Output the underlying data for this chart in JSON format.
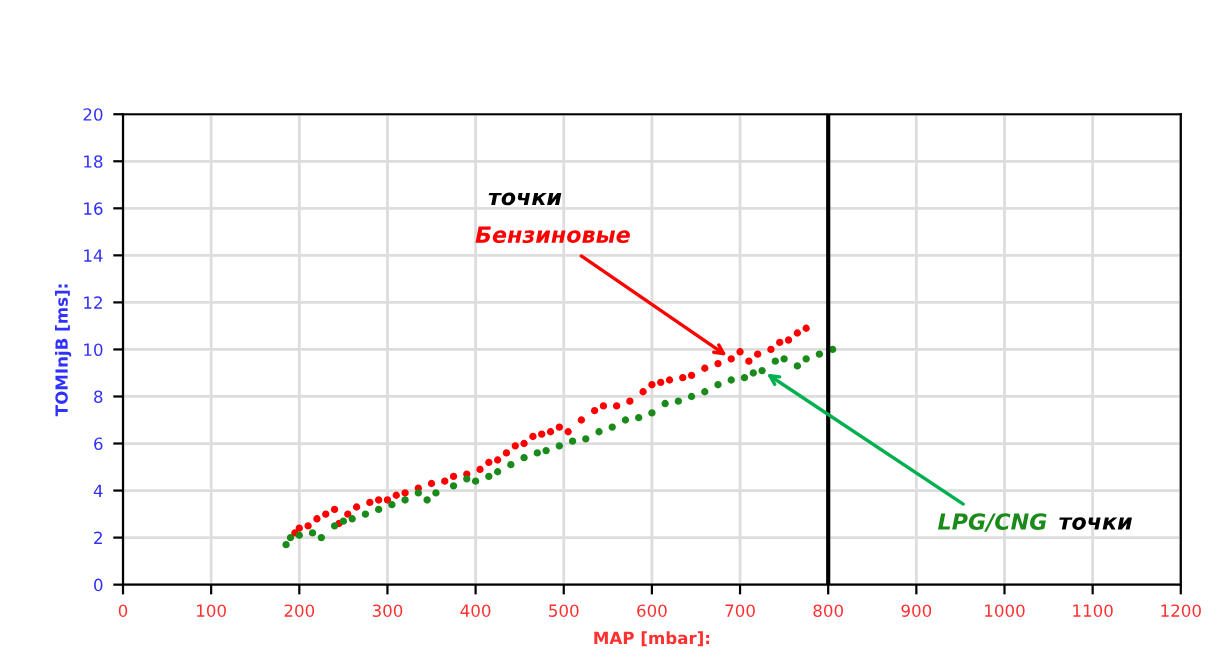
{
  "chart_data": {
    "type": "scatter",
    "xlabel": "MAP [mbar]:",
    "ylabel": "TOMInjB [ms]:",
    "xlim": [
      0,
      1200
    ],
    "xticks": [
      0,
      100,
      200,
      300,
      400,
      500,
      600,
      700,
      800,
      900,
      1000,
      1100,
      1200
    ],
    "ylim": [
      0,
      20
    ],
    "yticks": [
      0,
      2,
      4,
      6,
      8,
      10,
      12,
      14,
      16,
      18,
      20
    ],
    "grid": true,
    "marker": "circle",
    "ref_lines": [
      {
        "axis": "x",
        "value": 800,
        "color": "#000000"
      }
    ],
    "annotations": [
      {
        "text": "Бензиновые",
        "x": 690,
        "y": 9.6
      },
      {
        "text": "LPG/CNG",
        "x": 725,
        "y": 9.1
      },
      "точки",
      "точки"
    ],
    "series": [
      {
        "color": "#ff0000",
        "x": [
          195,
          200,
          210,
          220,
          230,
          240,
          245,
          255,
          265,
          280,
          290,
          300,
          310,
          320,
          335,
          350,
          365,
          375,
          390,
          405,
          415,
          425,
          435,
          445,
          455,
          465,
          475,
          485,
          495,
          505,
          520,
          535,
          545,
          560,
          575,
          590,
          600,
          610,
          620,
          635,
          645,
          660,
          675,
          690,
          700,
          710,
          720,
          735,
          745,
          755,
          765,
          775
        ],
        "values": [
          2.2,
          2.4,
          2.5,
          2.8,
          3.0,
          3.2,
          2.6,
          3.0,
          3.3,
          3.5,
          3.6,
          3.6,
          3.8,
          3.9,
          4.1,
          4.3,
          4.4,
          4.6,
          4.7,
          4.9,
          5.2,
          5.3,
          5.6,
          5.9,
          6.0,
          6.3,
          6.4,
          6.5,
          6.7,
          6.5,
          7.0,
          7.4,
          7.6,
          7.6,
          7.8,
          8.2,
          8.5,
          8.6,
          8.7,
          8.8,
          8.9,
          9.2,
          9.4,
          9.6,
          9.9,
          9.5,
          9.8,
          10.0,
          10.3,
          10.4,
          10.7,
          10.9
        ]
      },
      {
        "color": "#1a8a1a",
        "x": [
          185,
          190,
          200,
          215,
          225,
          240,
          250,
          260,
          275,
          290,
          305,
          320,
          335,
          345,
          355,
          375,
          390,
          400,
          415,
          425,
          440,
          455,
          470,
          480,
          495,
          510,
          525,
          540,
          555,
          570,
          585,
          600,
          615,
          630,
          645,
          660,
          675,
          690,
          705,
          715,
          725,
          740,
          750,
          765,
          775,
          790,
          805
        ],
        "values": [
          1.7,
          2.0,
          2.1,
          2.2,
          2.0,
          2.5,
          2.7,
          2.8,
          3.0,
          3.2,
          3.4,
          3.6,
          3.9,
          3.6,
          3.9,
          4.2,
          4.5,
          4.4,
          4.6,
          4.8,
          5.1,
          5.4,
          5.6,
          5.7,
          5.9,
          6.1,
          6.2,
          6.5,
          6.7,
          7.0,
          7.1,
          7.3,
          7.7,
          7.8,
          8.0,
          8.2,
          8.5,
          8.7,
          8.8,
          9.0,
          9.1,
          9.5,
          9.6,
          9.3,
          9.6,
          9.8,
          10.0
        ]
      }
    ]
  }
}
